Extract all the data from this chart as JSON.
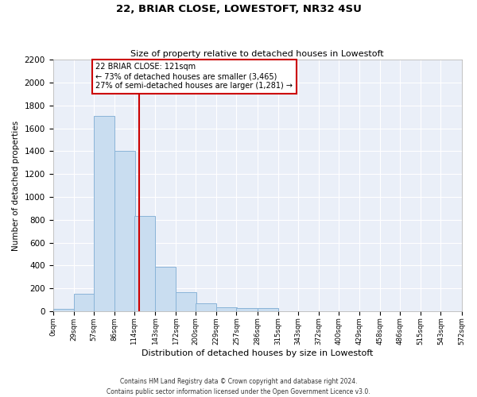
{
  "title": "22, BRIAR CLOSE, LOWESTOFT, NR32 4SU",
  "subtitle": "Size of property relative to detached houses in Lowestoft",
  "xlabel": "Distribution of detached houses by size in Lowestoft",
  "ylabel": "Number of detached properties",
  "bar_left_edges": [
    0,
    29,
    57,
    86,
    114,
    143,
    172,
    200,
    229,
    257,
    286,
    315,
    343,
    372,
    400,
    429,
    458,
    486,
    515,
    543
  ],
  "bar_heights": [
    20,
    155,
    1710,
    1400,
    830,
    385,
    165,
    70,
    35,
    25,
    25,
    0,
    0,
    0,
    0,
    0,
    0,
    0,
    0,
    0
  ],
  "bin_width": 29,
  "bar_color": "#c9ddf0",
  "bar_edge_color": "#8ab4d8",
  "tick_labels": [
    "0sqm",
    "29sqm",
    "57sqm",
    "86sqm",
    "114sqm",
    "143sqm",
    "172sqm",
    "200sqm",
    "229sqm",
    "257sqm",
    "286sqm",
    "315sqm",
    "343sqm",
    "372sqm",
    "400sqm",
    "429sqm",
    "458sqm",
    "486sqm",
    "515sqm",
    "543sqm",
    "572sqm"
  ],
  "ylim": [
    0,
    2200
  ],
  "yticks": [
    0,
    200,
    400,
    600,
    800,
    1000,
    1200,
    1400,
    1600,
    1800,
    2000,
    2200
  ],
  "xlim_max": 572,
  "property_size": 121,
  "vline_color": "#cc0000",
  "annotation_title": "22 BRIAR CLOSE: 121sqm",
  "annotation_line1": "← 73% of detached houses are smaller (3,465)",
  "annotation_line2": "27% of semi-detached houses are larger (1,281) →",
  "annotation_box_color": "#cc0000",
  "annotation_bg": "#ffffff",
  "background_color": "#eaeff8",
  "grid_color": "#ffffff",
  "footer1": "Contains HM Land Registry data © Crown copyright and database right 2024.",
  "footer2": "Contains public sector information licensed under the Open Government Licence v3.0."
}
